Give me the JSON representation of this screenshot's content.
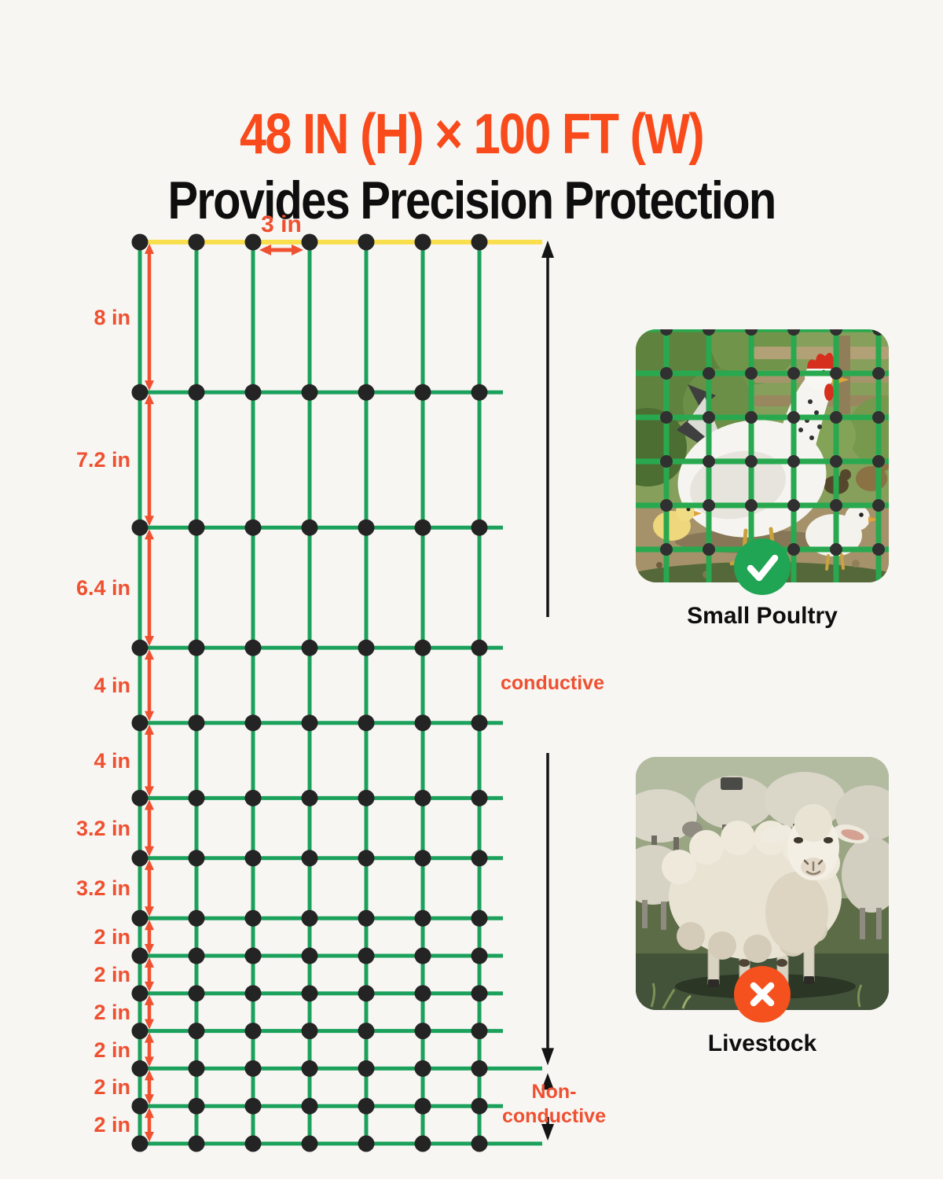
{
  "page": {
    "background": "#F7F6F3"
  },
  "header": {
    "title": "48 IN (H) × 100 FT (W)",
    "subtitle": "Provides Precision Protection"
  },
  "colors": {
    "title_orange": "#F94A1B",
    "text_black": "#0E0E0E"
  },
  "diagram": {
    "columns": 7,
    "total_height_in": 48,
    "mesh_width_label": "3 in",
    "row_gaps": [
      {
        "label": "8 in",
        "inches": 8
      },
      {
        "label": "7.2 in",
        "inches": 7.2
      },
      {
        "label": "6.4 in",
        "inches": 6.4
      },
      {
        "label": "4 in",
        "inches": 4
      },
      {
        "label": "4 in",
        "inches": 4
      },
      {
        "label": "3.2 in",
        "inches": 3.2
      },
      {
        "label": "3.2 in",
        "inches": 3.2
      },
      {
        "label": "2 in",
        "inches": 2
      },
      {
        "label": "2 in",
        "inches": 2
      },
      {
        "label": "2 in",
        "inches": 2
      },
      {
        "label": "2 in",
        "inches": 2
      },
      {
        "label": "2 in",
        "inches": 2
      },
      {
        "label": "2 in",
        "inches": 2
      }
    ],
    "conductive_label": "conductive",
    "nonconductive_lines": [
      "Non-",
      "conductive"
    ],
    "colors": {
      "grid_green": "#1BA15B",
      "top_line_yellow": "#F9DF4E",
      "knot_dot": "#242424",
      "measure_orange": "#EF5030",
      "bracket_black": "#141414"
    }
  },
  "cards": [
    {
      "label": "Small Poultry",
      "status": "suitable",
      "icon": "check",
      "badge_color": "#1FA553"
    },
    {
      "label": "Livestock",
      "status": "not-suitable",
      "icon": "cross",
      "badge_color": "#F4511E"
    }
  ]
}
